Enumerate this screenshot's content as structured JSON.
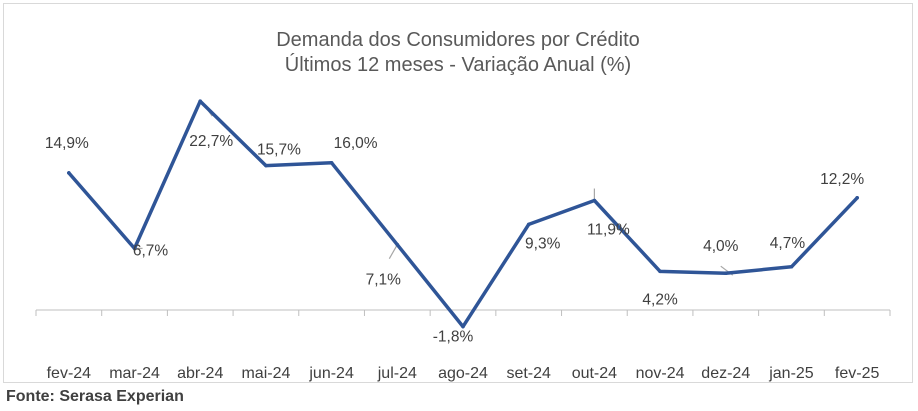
{
  "chart_data": {
    "type": "line",
    "title": "Demanda dos Consumidores por Crédito",
    "subtitle": "Últimos 12 meses - Variação Anual (%)",
    "categories": [
      "fev-24",
      "mar-24",
      "abr-24",
      "mai-24",
      "jun-24",
      "jul-24",
      "ago-24",
      "set-24",
      "out-24",
      "nov-24",
      "dez-24",
      "jan-25",
      "fev-25"
    ],
    "series": [
      {
        "values": [
          14.9,
          6.7,
          22.7,
          15.7,
          16.0,
          7.1,
          -1.8,
          9.3,
          11.9,
          4.2,
          4.0,
          4.7,
          12.2
        ],
        "labels": [
          "14,9%",
          "6,7%",
          "22,7%",
          "15,7%",
          "16,0%",
          "7,1%",
          "-1,8%",
          "9,3%",
          "11,9%",
          "4,2%",
          "4,0%",
          "4,7%",
          "12,2%"
        ]
      }
    ],
    "xlabel": "",
    "ylabel": "",
    "ylim": [
      -3,
      25
    ],
    "grid": false,
    "legend": "none",
    "colors": {
      "line": "#2f5597",
      "axis": "#bfbfbf",
      "leader": "#a6a6a6"
    }
  },
  "source": "Fonte: Serasa Experian"
}
